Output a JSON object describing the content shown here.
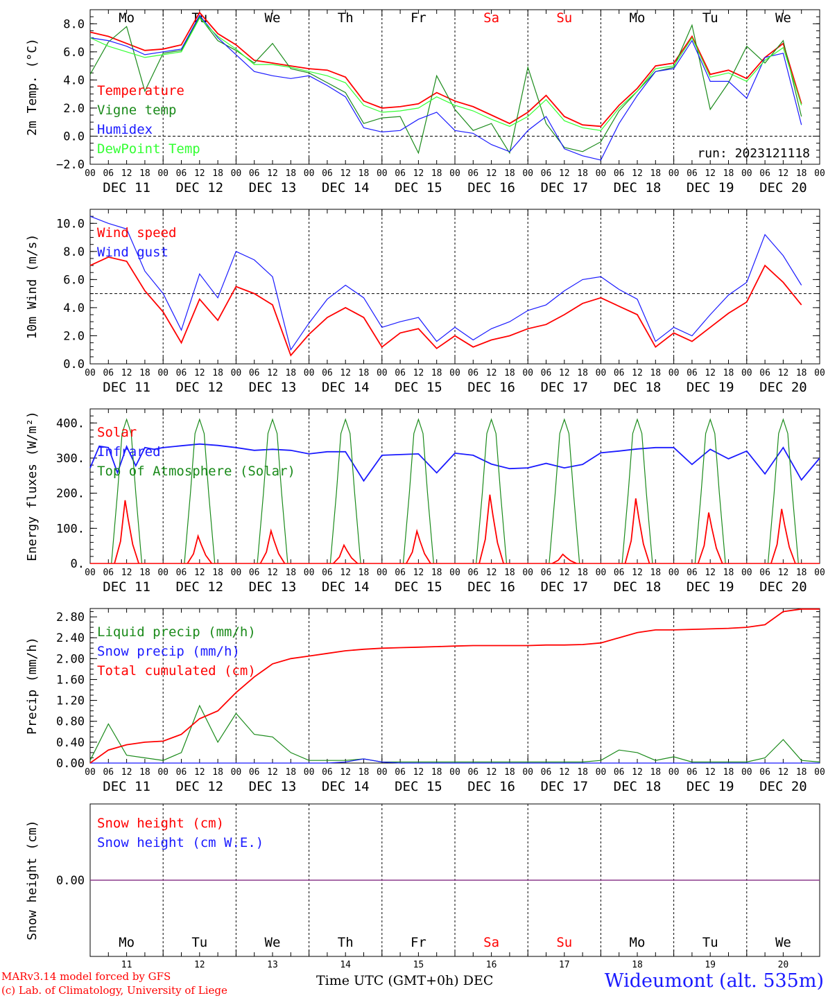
{
  "footer": {
    "credit_line1": "MARv3.14 model forced by GFS",
    "credit_line2": "(c) Lab. of Climatology, University of Liege",
    "xaxis_title": "Time UTC (GMT+0h)",
    "xaxis_unit": "DEC",
    "station": "Wideumont (alt. 535m)"
  },
  "colors": {
    "red": "#ff0000",
    "green": "#1a8a1a",
    "blue": "#1a1aff",
    "lightgreen": "#33ff33",
    "purple": "#8b3a8b",
    "weekend": "#ff0000"
  },
  "chart_data": [
    {
      "type": "line",
      "ylabel": "2m Temp. (°C)",
      "ylim": [
        -2,
        9
      ],
      "yticks": [
        "8.0",
        "6.0",
        "4.0",
        "2.0",
        "0.0",
        "−2.0"
      ],
      "yticks_values": [
        8,
        6,
        4,
        2,
        0,
        -2
      ],
      "ref_line": 0,
      "day_labels": [
        "Mo",
        "Tu",
        "We",
        "Th",
        "Fr",
        "Sa",
        "Su",
        "Mo",
        "Tu",
        "We"
      ],
      "weekend_days": [
        5,
        6
      ],
      "date_labels": [
        "DEC 11",
        "DEC 12",
        "DEC 13",
        "DEC 14",
        "DEC 15",
        "DEC 16",
        "DEC 17",
        "DEC 18",
        "DEC 19",
        "DEC 20"
      ],
      "annotation": "run: 2023121118",
      "x_hours": [
        0,
        6,
        12,
        18,
        24,
        30,
        36,
        42,
        48,
        54,
        60,
        66,
        72,
        78,
        84,
        90,
        96,
        102,
        108,
        114,
        120,
        126,
        132,
        138,
        144,
        150,
        156,
        162,
        168,
        174,
        180,
        186,
        192,
        198,
        204,
        210,
        216,
        222,
        228,
        234
      ],
      "series": [
        {
          "name": "Temperature",
          "color": "red",
          "values": [
            7.4,
            7.1,
            6.6,
            6.1,
            6.2,
            6.5,
            8.8,
            7.3,
            6.5,
            5.4,
            5.2,
            5.0,
            4.8,
            4.7,
            4.2,
            2.5,
            2.0,
            2.1,
            2.3,
            3.1,
            2.5,
            2.1,
            1.5,
            0.9,
            1.7,
            2.9,
            1.4,
            0.8,
            0.7,
            2.2,
            3.4,
            5.0,
            5.2,
            7.1,
            4.4,
            4.7,
            4.1,
            5.6,
            6.6,
            2.3
          ]
        },
        {
          "name": "Vigne temp",
          "color": "green",
          "values": [
            4.4,
            6.7,
            7.8,
            3.2,
            5.9,
            6.1,
            8.5,
            6.8,
            6.1,
            5.2,
            6.6,
            4.8,
            4.5,
            3.8,
            3.1,
            0.9,
            1.3,
            1.4,
            -1.2,
            4.3,
            1.9,
            0.4,
            0.9,
            -1.2,
            4.9,
            0.9,
            -0.8,
            -1.1,
            -0.4,
            1.8,
            3.2,
            4.6,
            4.9,
            7.9,
            1.9,
            3.8,
            6.4,
            5.2,
            6.8,
            1.4
          ]
        },
        {
          "name": "Humidex",
          "color": "blue",
          "values": [
            7.0,
            6.8,
            6.4,
            5.8,
            6.0,
            6.2,
            8.6,
            7.0,
            5.8,
            4.6,
            4.3,
            4.1,
            4.3,
            3.6,
            2.8,
            0.6,
            0.3,
            0.4,
            1.2,
            1.7,
            0.4,
            0.2,
            -0.6,
            -1.1,
            0.4,
            1.4,
            -0.9,
            -1.4,
            -1.7,
            0.9,
            2.9,
            4.6,
            4.8,
            6.8,
            3.9,
            3.9,
            2.7,
            5.6,
            5.9,
            0.8
          ]
        },
        {
          "name": "DewPoint Temp",
          "color": "lightgreen",
          "values": [
            7.0,
            6.4,
            6.0,
            5.6,
            5.8,
            6.0,
            8.4,
            7.1,
            6.2,
            5.1,
            5.1,
            4.9,
            4.6,
            4.3,
            3.8,
            2.2,
            1.7,
            1.8,
            2.0,
            2.8,
            2.2,
            1.8,
            1.2,
            0.7,
            1.4,
            2.6,
            1.1,
            0.6,
            0.4,
            2.0,
            3.2,
            4.8,
            5.0,
            7.0,
            4.2,
            4.5,
            3.9,
            5.4,
            6.3,
            2.2
          ]
        }
      ]
    },
    {
      "type": "line",
      "ylabel": "10m Wind (m/s)",
      "ylim": [
        0,
        11
      ],
      "yticks": [
        "10.0",
        "8.0",
        "6.0",
        "4.0",
        "2.0",
        "0.0"
      ],
      "yticks_values": [
        10,
        8,
        6,
        4,
        2,
        0
      ],
      "ref_line": 5,
      "date_labels": [
        "DEC 11",
        "DEC 12",
        "DEC 13",
        "DEC 14",
        "DEC 15",
        "DEC 16",
        "DEC 17",
        "DEC 18",
        "DEC 19",
        "DEC 20"
      ],
      "x_hours": [
        0,
        6,
        12,
        18,
        24,
        30,
        36,
        42,
        48,
        54,
        60,
        66,
        72,
        78,
        84,
        90,
        96,
        102,
        108,
        114,
        120,
        126,
        132,
        138,
        144,
        150,
        156,
        162,
        168,
        174,
        180,
        186,
        192,
        198,
        204,
        210,
        216,
        222,
        228,
        234
      ],
      "series": [
        {
          "name": "Wind speed",
          "color": "red",
          "values": [
            7.0,
            7.6,
            7.3,
            5.2,
            3.7,
            1.5,
            4.6,
            3.1,
            5.5,
            5.0,
            4.2,
            0.6,
            2.1,
            3.3,
            4.0,
            3.3,
            1.2,
            2.2,
            2.5,
            1.1,
            2.0,
            1.2,
            1.7,
            2.0,
            2.5,
            2.8,
            3.5,
            4.3,
            4.7,
            4.1,
            3.5,
            1.2,
            2.2,
            1.6,
            2.6,
            3.6,
            4.4,
            7.0,
            5.8,
            4.2
          ]
        },
        {
          "name": "Wind gust",
          "color": "blue",
          "values": [
            10.5,
            10.0,
            9.6,
            6.6,
            5.0,
            2.4,
            6.4,
            4.7,
            8.0,
            7.4,
            6.2,
            1.0,
            2.9,
            4.6,
            5.6,
            4.7,
            2.6,
            3.0,
            3.3,
            1.6,
            2.6,
            1.7,
            2.5,
            3.0,
            3.8,
            4.2,
            5.2,
            6.0,
            6.2,
            5.3,
            4.6,
            1.6,
            2.6,
            2.0,
            3.5,
            4.9,
            5.8,
            9.2,
            7.7,
            5.6
          ]
        }
      ]
    },
    {
      "type": "line",
      "ylabel": "Energy fluxes (W/m²)",
      "ylim": [
        0,
        440
      ],
      "yticks": [
        "400.",
        "300.",
        "200.",
        "100.",
        "0."
      ],
      "yticks_values": [
        400,
        300,
        200,
        100,
        0
      ],
      "date_labels": [
        "DEC 11",
        "DEC 12",
        "DEC 13",
        "DEC 14",
        "DEC 15",
        "DEC 16",
        "DEC 17",
        "DEC 18",
        "DEC 19",
        "DEC 20"
      ],
      "solar_peaks": [
        180,
        78,
        93,
        52,
        92,
        196,
        26,
        185,
        145,
        155
      ],
      "toa_peak": 410,
      "infrared_hours": [
        0,
        3,
        6,
        9,
        12,
        15,
        18,
        21,
        24,
        30,
        36,
        42,
        48,
        54,
        60,
        66,
        72,
        78,
        84,
        90,
        96,
        102,
        108,
        114,
        120,
        126,
        132,
        138,
        144,
        150,
        156,
        162,
        168,
        174,
        180,
        186,
        192,
        198,
        204,
        210,
        216,
        222,
        228,
        234,
        240
      ],
      "infrared_values": [
        272,
        334,
        330,
        258,
        333,
        278,
        330,
        325,
        330,
        335,
        340,
        336,
        330,
        322,
        325,
        322,
        312,
        318,
        318,
        235,
        308,
        310,
        312,
        258,
        314,
        308,
        283,
        270,
        272,
        285,
        272,
        282,
        315,
        320,
        326,
        330,
        330,
        282,
        325,
        298,
        320,
        255,
        330,
        238,
        300
      ],
      "series": [
        {
          "name": "Solar",
          "color": "red"
        },
        {
          "name": "Infrared",
          "color": "blue"
        },
        {
          "name": "Top of Atmosphere (Solar)",
          "color": "green"
        }
      ]
    },
    {
      "type": "line",
      "ylabel": "Precip (mm/h)",
      "ylim": [
        0,
        2.96
      ],
      "yticks": [
        "2.80",
        "2.40",
        "2.00",
        "1.60",
        "1.20",
        "0.80",
        "0.40",
        "0.00"
      ],
      "yticks_values": [
        2.8,
        2.4,
        2.0,
        1.6,
        1.2,
        0.8,
        0.4,
        0.0
      ],
      "date_labels": [
        "DEC 11",
        "DEC 12",
        "DEC 13",
        "DEC 14",
        "DEC 15",
        "DEC 16",
        "DEC 17",
        "DEC 18",
        "DEC 19",
        "DEC 20"
      ],
      "x_hours": [
        0,
        6,
        12,
        18,
        24,
        30,
        36,
        42,
        48,
        54,
        60,
        66,
        72,
        78,
        84,
        90,
        96,
        102,
        108,
        114,
        120,
        126,
        132,
        138,
        144,
        150,
        156,
        162,
        168,
        174,
        180,
        186,
        192,
        198,
        204,
        210,
        216,
        222,
        228,
        234,
        240
      ],
      "series": [
        {
          "name": "Liquid precip (mm/h)",
          "color": "green",
          "values": [
            0.05,
            0.75,
            0.15,
            0.1,
            0.05,
            0.2,
            1.1,
            0.4,
            0.95,
            0.55,
            0.5,
            0.2,
            0.05,
            0.05,
            0.05,
            0.08,
            0.02,
            0.02,
            0.02,
            0.02,
            0.02,
            0.02,
            0.02,
            0.02,
            0.02,
            0.02,
            0.02,
            0.02,
            0.05,
            0.25,
            0.2,
            0.05,
            0.12,
            0.02,
            0.02,
            0.02,
            0.02,
            0.1,
            0.45,
            0.05,
            0.02
          ]
        },
        {
          "name": "Snow precip (mm/h)",
          "color": "blue",
          "values": [
            0,
            0,
            0,
            0,
            0,
            0,
            0,
            0,
            0,
            0,
            0,
            0,
            0,
            0,
            0.02,
            0.08,
            0.02,
            0,
            0,
            0,
            0,
            0,
            0,
            0,
            0,
            0,
            0,
            0,
            0,
            0,
            0,
            0,
            0,
            0,
            0,
            0,
            0,
            0,
            0,
            0,
            0
          ]
        },
        {
          "name": "Total cumulated (cm)",
          "color": "red",
          "values": [
            0.0,
            0.25,
            0.35,
            0.4,
            0.42,
            0.55,
            0.85,
            1.0,
            1.35,
            1.65,
            1.9,
            2.0,
            2.05,
            2.1,
            2.15,
            2.18,
            2.2,
            2.21,
            2.22,
            2.23,
            2.24,
            2.25,
            2.25,
            2.25,
            2.25,
            2.26,
            2.26,
            2.27,
            2.3,
            2.4,
            2.5,
            2.55,
            2.55,
            2.56,
            2.57,
            2.58,
            2.6,
            2.65,
            2.9,
            2.95,
            2.95
          ]
        }
      ]
    },
    {
      "type": "line",
      "ylabel": "Snow height (cm)",
      "yticks": [
        "0.00"
      ],
      "yticks_values": [
        0
      ],
      "day_labels": [
        "Mo",
        "Tu",
        "We",
        "Th",
        "Fr",
        "Sa",
        "Su",
        "Mo",
        "Tu",
        "We"
      ],
      "weekend_days": [
        5,
        6
      ],
      "date_numbers": [
        "11",
        "12",
        "13",
        "14",
        "15",
        "16",
        "17",
        "18",
        "19",
        "20"
      ],
      "series": [
        {
          "name": "Snow height (cm)",
          "color": "red",
          "values": [
            0,
            0
          ]
        },
        {
          "name": "Snow height (cm W.E.)",
          "color": "blue",
          "values": [
            0,
            0
          ]
        }
      ]
    }
  ],
  "hour_ticks": [
    "00",
    "06",
    "12",
    "18"
  ]
}
